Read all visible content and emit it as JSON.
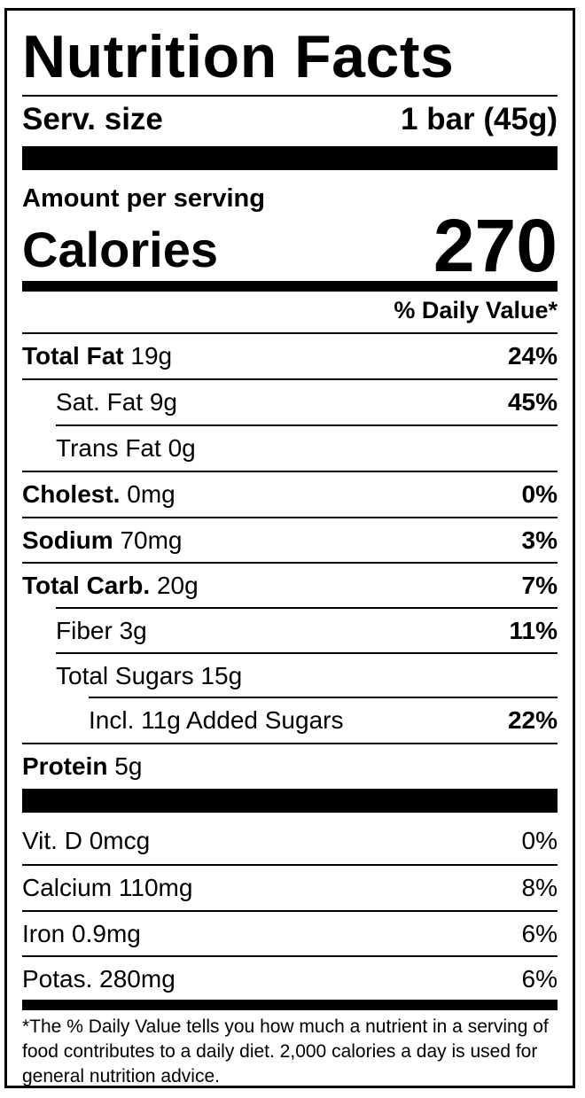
{
  "title": "Nutrition Facts",
  "serving": {
    "label": "Serv. size",
    "value": "1 bar (45g)"
  },
  "amount_per_serving": "Amount per serving",
  "calories": {
    "label": "Calories",
    "value": "270"
  },
  "daily_value_header": "% Daily Value*",
  "nutrients": [
    {
      "name": "Total Fat",
      "amount": "19g",
      "dv": "24%"
    },
    {
      "name": "Sat. Fat",
      "amount": "9g",
      "dv": "45%"
    },
    {
      "name": "Trans Fat",
      "amount": "0g",
      "dv": ""
    },
    {
      "name": "Cholest.",
      "amount": "0mg",
      "dv": "0%"
    },
    {
      "name": "Sodium",
      "amount": "70mg",
      "dv": "3%"
    },
    {
      "name": "Total Carb.",
      "amount": "20g",
      "dv": "7%"
    },
    {
      "name": "Fiber",
      "amount": "3g",
      "dv": "11%"
    },
    {
      "name": "Total Sugars",
      "amount": "15g",
      "dv": ""
    },
    {
      "name": "Incl. 11g Added Sugars",
      "amount": "",
      "dv": "22%"
    },
    {
      "name": "Protein",
      "amount": "5g",
      "dv": ""
    }
  ],
  "vitamins": [
    {
      "name": "Vit. D 0mcg",
      "dv": "0%"
    },
    {
      "name": "Calcium 110mg",
      "dv": "8%"
    },
    {
      "name": "Iron 0.9mg",
      "dv": "6%"
    },
    {
      "name": "Potas. 280mg",
      "dv": "6%"
    }
  ],
  "footnote": "*The % Daily Value tells you how much a nutrient in a serving of food contributes to a daily diet. 2,000 calories a day is used for general nutrition advice."
}
